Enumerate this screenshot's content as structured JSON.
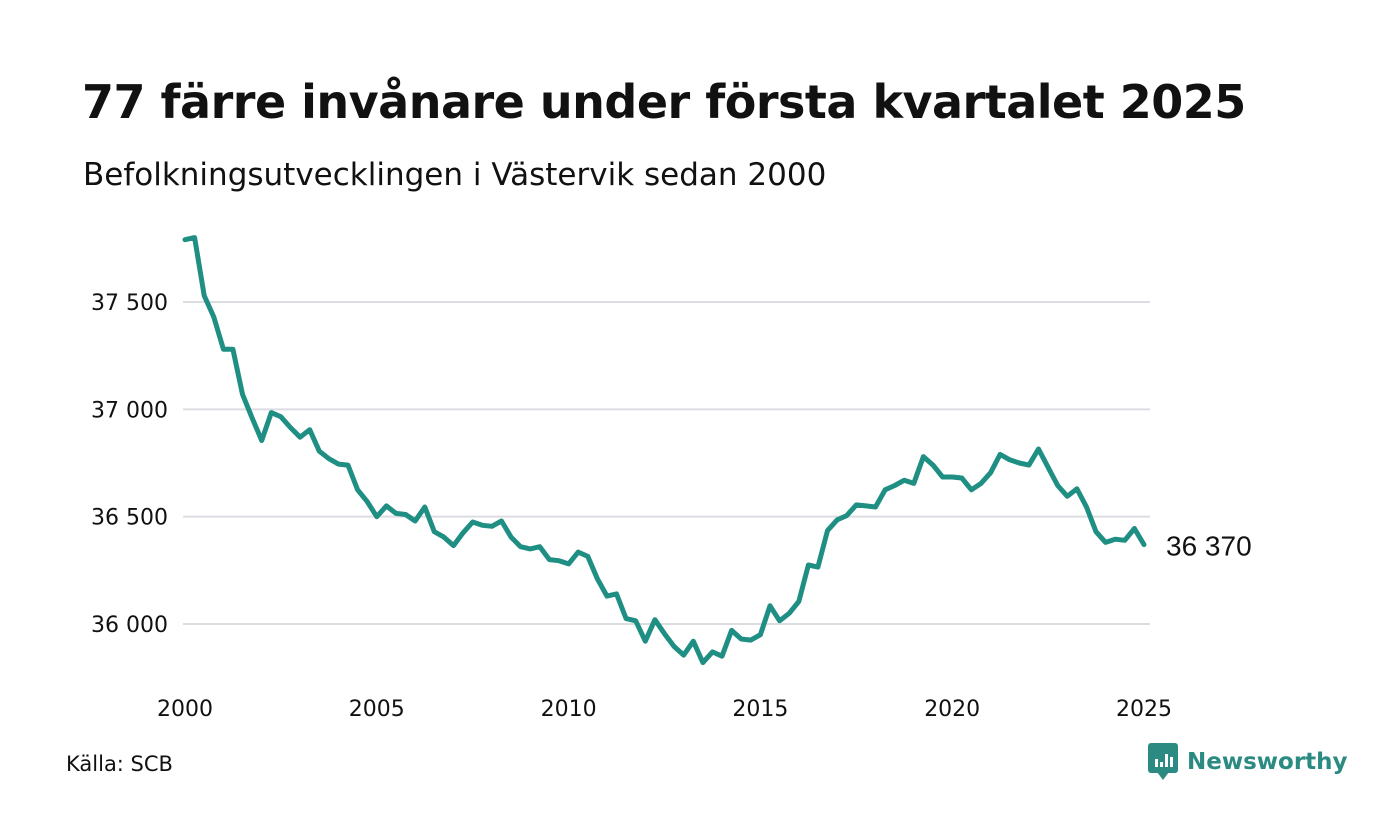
{
  "title": "77 färre invånare under första kvartalet 2025",
  "subtitle": "Befolkningsutvecklingen i Västervik sedan 2000",
  "source": "Källa: SCB",
  "brand": {
    "name": "Newsworthy",
    "icon": "newsworthy-logo-icon",
    "color": "#2b8a82"
  },
  "chart_data": {
    "type": "line",
    "x_unit": "year (quarterly)",
    "x_ticks": [
      2000,
      2005,
      2010,
      2015,
      2020,
      2025
    ],
    "x_tick_labels": [
      "2000",
      "2005",
      "2010",
      "2015",
      "2020",
      "2025"
    ],
    "y_ticks": [
      36000,
      36500,
      37000,
      37500
    ],
    "y_tick_labels": [
      "36 000",
      "36 500",
      "37 000",
      "37 500"
    ],
    "xlim": [
      2000,
      2025
    ],
    "ylim": [
      35750,
      37850
    ],
    "grid": "horizontal",
    "line_color": "#1f8f84",
    "end_label": "36 370",
    "series": [
      {
        "x": [
          2000.0,
          2000.25,
          2000.5,
          2000.75,
          2001.0,
          2001.25,
          2001.5,
          2001.75,
          2002.0,
          2002.25,
          2002.5,
          2002.75,
          2003.0,
          2003.25,
          2003.5,
          2003.75,
          2004.0,
          2004.25,
          2004.5,
          2004.75,
          2005.0,
          2005.25,
          2005.5,
          2005.75,
          2006.0,
          2006.25,
          2006.5,
          2006.75,
          2007.0,
          2007.25,
          2007.5,
          2007.75,
          2008.0,
          2008.25,
          2008.5,
          2008.75,
          2009.0,
          2009.25,
          2009.5,
          2009.75,
          2010.0,
          2010.25,
          2010.5,
          2010.75,
          2011.0,
          2011.25,
          2011.5,
          2011.75,
          2012.0,
          2012.25,
          2012.5,
          2012.75,
          2013.0,
          2013.25,
          2013.5,
          2013.75,
          2014.0,
          2014.25,
          2014.5,
          2014.75,
          2015.0,
          2015.25,
          2015.5,
          2015.75,
          2016.0,
          2016.25,
          2016.5,
          2016.75,
          2017.0,
          2017.25,
          2017.5,
          2017.75,
          2018.0,
          2018.25,
          2018.5,
          2018.75,
          2019.0,
          2019.25,
          2019.5,
          2019.75,
          2020.0,
          2020.25,
          2020.5,
          2020.75,
          2021.0,
          2021.25,
          2021.5,
          2021.75,
          2022.0,
          2022.25,
          2022.5,
          2022.75,
          2023.0,
          2023.25,
          2023.5,
          2023.75,
          2024.0,
          2024.25,
          2024.5,
          2024.75,
          2025.0
        ],
        "values": [
          37790,
          37800,
          37530,
          37430,
          37280,
          37280,
          37070,
          36960,
          36855,
          36985,
          36965,
          36915,
          36870,
          36905,
          36805,
          36770,
          36745,
          36740,
          36625,
          36570,
          36500,
          36550,
          36515,
          36510,
          36480,
          36545,
          36430,
          36405,
          36365,
          36425,
          36475,
          36460,
          36455,
          36480,
          36405,
          36360,
          36350,
          36360,
          36300,
          36295,
          36280,
          36335,
          36315,
          36210,
          36130,
          36140,
          36025,
          36015,
          35920,
          36020,
          35955,
          35895,
          35855,
          35920,
          35820,
          35870,
          35850,
          35970,
          35930,
          35925,
          35950,
          36085,
          36015,
          36050,
          36105,
          36275,
          36265,
          36435,
          36485,
          36505,
          36555,
          36550,
          36545,
          36625,
          36645,
          36670,
          36655,
          36780,
          36740,
          36685,
          36685,
          36680,
          36625,
          36655,
          36705,
          36790,
          36765,
          36750,
          36740,
          36815,
          36730,
          36645,
          36595,
          36630,
          36545,
          36430,
          36380,
          36395,
          36390,
          36445,
          36370
        ]
      }
    ]
  }
}
